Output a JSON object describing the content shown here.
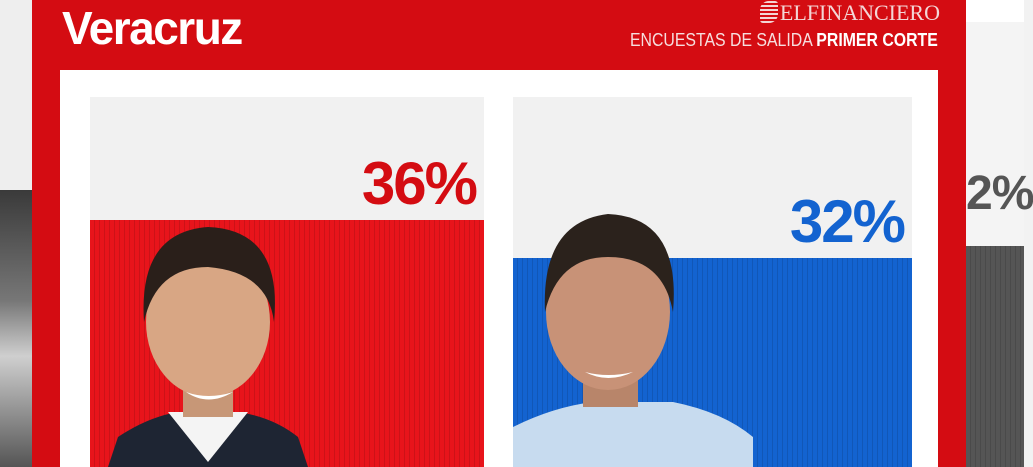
{
  "header": {
    "title": "Veracruz",
    "brand": "ELFINANCIERO",
    "subtitle_regular": "ENCUESTAS DE SALIDA",
    "subtitle_bold": "PRIMER CORTE"
  },
  "background_partial_value": "2%",
  "colors": {
    "panel": "#d40c12",
    "red": "#e8141b",
    "blue": "#1363d0",
    "gray": "#555555"
  },
  "chart_data": {
    "type": "bar",
    "categories": [
      "candidate-red",
      "candidate-blue"
    ],
    "values": [
      36,
      32
    ],
    "labels": [
      "36%",
      "32%"
    ],
    "colors": [
      "#e8141b",
      "#1363d0"
    ],
    "ylim": [
      0,
      100
    ]
  }
}
